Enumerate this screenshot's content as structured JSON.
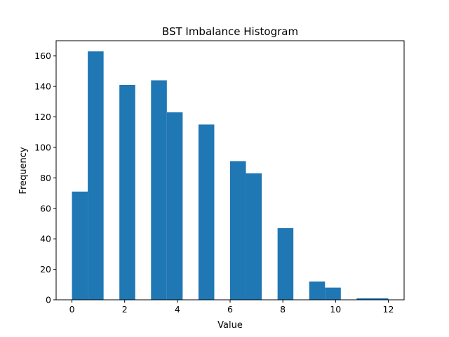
{
  "chart_data": {
    "type": "bar",
    "title": "BST Imbalance Histogram",
    "xlabel": "Value",
    "ylabel": "Frequency",
    "xlim": [
      -0.6,
      12.6
    ],
    "ylim": [
      0,
      170
    ],
    "xticks": [
      0,
      2,
      4,
      6,
      8,
      10,
      12
    ],
    "yticks": [
      0,
      20,
      40,
      60,
      80,
      100,
      120,
      140,
      160
    ],
    "grid": false,
    "bar_color": "#1f77b4",
    "bins": [
      {
        "x0": 0.0,
        "x1": 0.6,
        "value": 71
      },
      {
        "x0": 0.6,
        "x1": 1.2,
        "value": 163
      },
      {
        "x0": 1.2,
        "x1": 1.8,
        "value": 0
      },
      {
        "x0": 1.8,
        "x1": 2.4,
        "value": 141
      },
      {
        "x0": 2.4,
        "x1": 3.0,
        "value": 0
      },
      {
        "x0": 3.0,
        "x1": 3.6,
        "value": 144
      },
      {
        "x0": 3.6,
        "x1": 4.2,
        "value": 123
      },
      {
        "x0": 4.2,
        "x1": 4.8,
        "value": 0
      },
      {
        "x0": 4.8,
        "x1": 5.4,
        "value": 115
      },
      {
        "x0": 5.4,
        "x1": 6.0,
        "value": 0
      },
      {
        "x0": 6.0,
        "x1": 6.6,
        "value": 91
      },
      {
        "x0": 6.6,
        "x1": 7.2,
        "value": 83
      },
      {
        "x0": 7.2,
        "x1": 7.8,
        "value": 0
      },
      {
        "x0": 7.8,
        "x1": 8.4,
        "value": 47
      },
      {
        "x0": 8.4,
        "x1": 9.0,
        "value": 0
      },
      {
        "x0": 9.0,
        "x1": 9.6,
        "value": 12
      },
      {
        "x0": 9.6,
        "x1": 10.2,
        "value": 8
      },
      {
        "x0": 10.2,
        "x1": 10.8,
        "value": 0
      },
      {
        "x0": 10.8,
        "x1": 11.4,
        "value": 1
      },
      {
        "x0": 11.4,
        "x1": 12.0,
        "value": 1
      }
    ]
  }
}
